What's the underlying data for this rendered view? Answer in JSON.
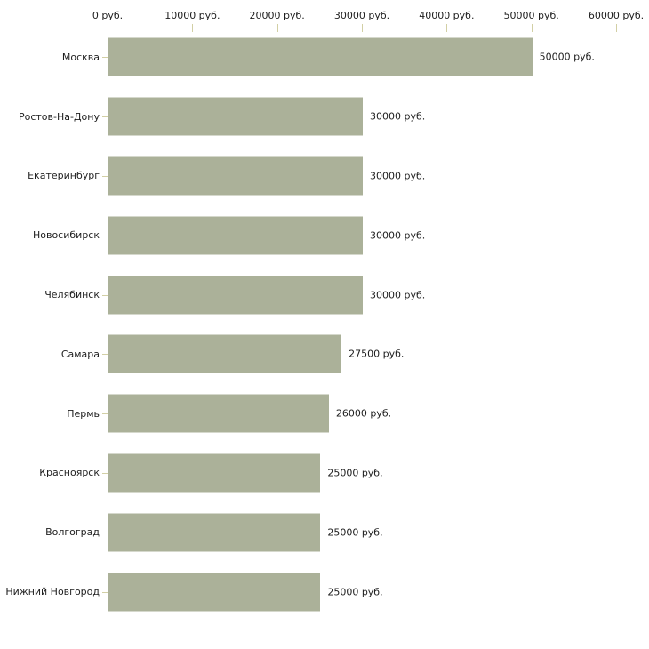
{
  "colors": {
    "bar": "#abb199",
    "axis": "#c8c8c8",
    "tick": "#d2cfa4",
    "text": "#1e1e1e",
    "background": "#ffffff"
  },
  "chart_data": {
    "type": "bar",
    "orientation": "horizontal",
    "title": "",
    "xlabel": "",
    "ylabel": "",
    "xlim": [
      0,
      60000
    ],
    "grid": false,
    "legend": "none",
    "x_ticks": [
      "0 руб.",
      "10000 руб.",
      "20000 руб.",
      "30000 руб.",
      "40000 руб.",
      "50000 руб.",
      "60000 руб."
    ],
    "categories": [
      "Москва",
      "Ростов-На-Дону",
      "Екатеринбург",
      "Новосибирск",
      "Челябинск",
      "Самара",
      "Пермь",
      "Красноярск",
      "Волгоград",
      "Нижний Новгород"
    ],
    "values": [
      50000,
      30000,
      30000,
      30000,
      30000,
      27500,
      26000,
      25000,
      25000,
      25000
    ],
    "value_labels": [
      "50000 руб.",
      "30000 руб.",
      "30000 руб.",
      "30000 руб.",
      "30000 руб.",
      "27500 руб.",
      "26000 руб.",
      "25000 руб.",
      "25000 руб.",
      "25000 руб."
    ]
  }
}
